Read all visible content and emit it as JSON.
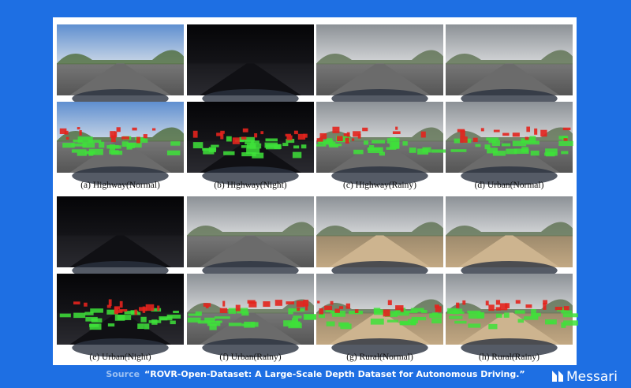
{
  "figure": {
    "captions": [
      "(a) Highway(Normal)",
      "(b) Highway(Night)",
      "(c) Highway(Rainy)",
      "(d) Urban(Normal)",
      "(e) Urban(Night)",
      "(f) Urban(Rainy)",
      "(g) Rural(Normal)",
      "(h) Rural(Rainy)"
    ]
  },
  "footer": {
    "source_label": "Source",
    "source_text": "“ROVR-Open-Dataset: A Large-Scale Depth Dataset for Autonomous Driving.”",
    "brand": "Messari"
  }
}
